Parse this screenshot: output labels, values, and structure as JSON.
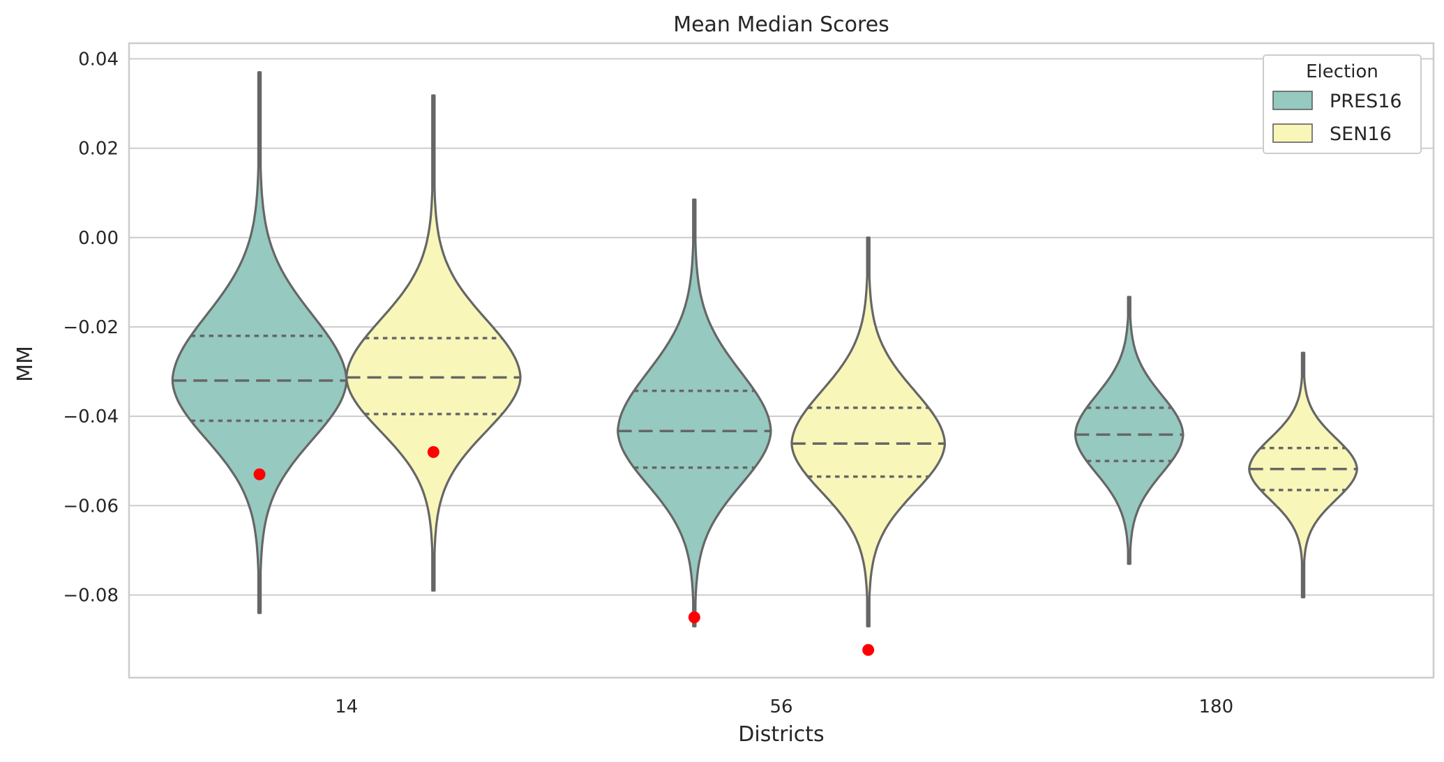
{
  "chart_data": {
    "type": "violin",
    "title": "Mean Median Scores",
    "xlabel": "Districts",
    "ylabel": "MM",
    "categories": [
      "14",
      "56",
      "180"
    ],
    "ylim": [
      -0.0985,
      0.0435
    ],
    "yticks": [
      0.04,
      0.02,
      0.0,
      -0.02,
      -0.04,
      -0.06,
      -0.08
    ],
    "ytick_labels": [
      "0.04",
      "0.02",
      "0.00",
      "−0.02",
      "−0.04",
      "−0.06",
      "−0.08"
    ],
    "grid": true,
    "legend": {
      "title": "Election",
      "position": "top-right"
    },
    "series": [
      {
        "name": "PRES16",
        "color": "#96c9c0",
        "violins": [
          {
            "category": "14",
            "min": -0.084,
            "max": 0.037,
            "q1": -0.041,
            "median": -0.032,
            "q3": -0.022,
            "marker": -0.053
          },
          {
            "category": "56",
            "min": -0.087,
            "max": 0.0085,
            "q1": -0.0515,
            "median": -0.0433,
            "q3": -0.0343,
            "marker": -0.085
          },
          {
            "category": "180",
            "min": -0.073,
            "max": -0.0133,
            "q1": -0.05,
            "median": -0.0441,
            "q3": -0.0381,
            "marker": null
          }
        ]
      },
      {
        "name": "SEN16",
        "color": "#f8f6b9",
        "violins": [
          {
            "category": "14",
            "min": -0.079,
            "max": 0.0318,
            "q1": -0.0395,
            "median": -0.0313,
            "q3": -0.0225,
            "marker": -0.048
          },
          {
            "category": "56",
            "min": -0.087,
            "max": 0.0,
            "q1": -0.0535,
            "median": -0.0461,
            "q3": -0.0381,
            "marker": -0.0923
          },
          {
            "category": "180",
            "min": -0.0805,
            "max": -0.0258,
            "q1": -0.0565,
            "median": -0.0518,
            "q3": -0.0471,
            "marker": null
          }
        ]
      }
    ],
    "marker_color": "#ff0000"
  }
}
